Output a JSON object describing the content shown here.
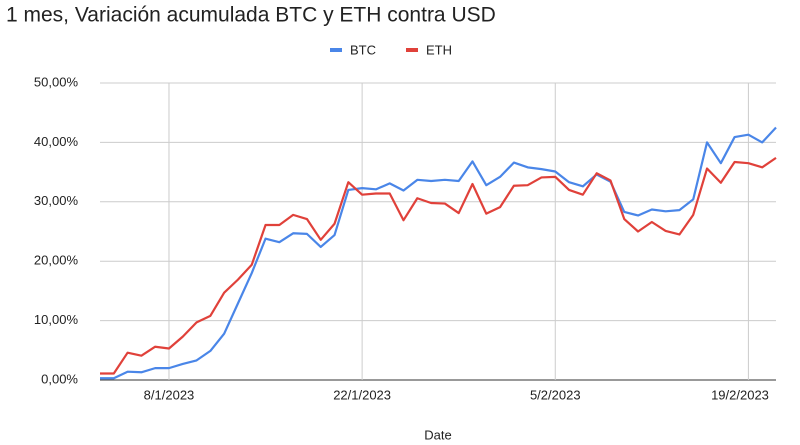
{
  "chart_data": {
    "type": "line",
    "title": "1 mes, Variación acumulada BTC y ETH contra USD",
    "x_label": "Date",
    "x": [
      "3/1/2023",
      "4/1/2023",
      "5/1/2023",
      "6/1/2023",
      "7/1/2023",
      "8/1/2023",
      "9/1/2023",
      "10/1/2023",
      "11/1/2023",
      "12/1/2023",
      "13/1/2023",
      "14/1/2023",
      "15/1/2023",
      "16/1/2023",
      "17/1/2023",
      "18/1/2023",
      "19/1/2023",
      "20/1/2023",
      "21/1/2023",
      "22/1/2023",
      "23/1/2023",
      "24/1/2023",
      "25/1/2023",
      "26/1/2023",
      "27/1/2023",
      "28/1/2023",
      "29/1/2023",
      "30/1/2023",
      "31/1/2023",
      "1/2/2023",
      "2/2/2023",
      "3/2/2023",
      "4/2/2023",
      "5/2/2023",
      "6/2/2023",
      "7/2/2023",
      "8/2/2023",
      "9/2/2023",
      "10/2/2023",
      "11/2/2023",
      "12/2/2023",
      "13/2/2023",
      "14/2/2023",
      "15/2/2023",
      "16/2/2023",
      "17/2/2023",
      "18/2/2023",
      "19/2/2023",
      "20/2/2023",
      "21/2/2023"
    ],
    "series": [
      {
        "name": "BTC",
        "color": "#4a86e8",
        "values": [
          0.3,
          0.3,
          1.4,
          1.3,
          2.0,
          2.0,
          2.7,
          3.3,
          4.9,
          7.8,
          12.9,
          18.0,
          23.8,
          23.2,
          24.7,
          24.6,
          22.4,
          24.4,
          32.0,
          32.3,
          32.1,
          33.1,
          31.9,
          33.7,
          33.5,
          33.7,
          33.5,
          36.8,
          32.8,
          34.2,
          36.6,
          35.8,
          35.5,
          35.1,
          33.3,
          32.6,
          34.6,
          33.4,
          28.3,
          27.7,
          28.7,
          28.4,
          28.6,
          30.4,
          40.0,
          36.5,
          40.9,
          41.3,
          40.0,
          42.5
        ]
      },
      {
        "name": "ETH",
        "color": "#e0413a",
        "values": [
          1.1,
          1.1,
          4.6,
          4.1,
          5.6,
          5.3,
          7.3,
          9.7,
          10.8,
          14.7,
          16.9,
          19.4,
          26.1,
          26.1,
          27.8,
          27.1,
          23.6,
          26.3,
          33.3,
          31.2,
          31.4,
          31.4,
          26.9,
          30.6,
          29.8,
          29.7,
          28.1,
          33.0,
          28.0,
          29.1,
          32.7,
          32.8,
          34.1,
          34.2,
          32.0,
          31.2,
          34.8,
          33.6,
          27.1,
          25.0,
          26.6,
          25.1,
          24.5,
          27.8,
          35.6,
          33.2,
          36.7,
          36.5,
          35.8,
          37.4
        ]
      }
    ],
    "xlim": [
      "3/1/2023",
      "21/2/2023"
    ],
    "xticks": [
      "8/1/2023",
      "22/1/2023",
      "5/2/2023",
      "19/2/2023"
    ],
    "ylim": [
      0,
      50
    ],
    "yticks": [
      {
        "value": 0,
        "label": "0,00%"
      },
      {
        "value": 10,
        "label": "10,00%"
      },
      {
        "value": 20,
        "label": "20,00%"
      },
      {
        "value": 30,
        "label": "30,00%"
      },
      {
        "value": 40,
        "label": "40,00%"
      },
      {
        "value": 50,
        "label": "50,00%"
      }
    ],
    "grid": true,
    "legend": "top"
  }
}
